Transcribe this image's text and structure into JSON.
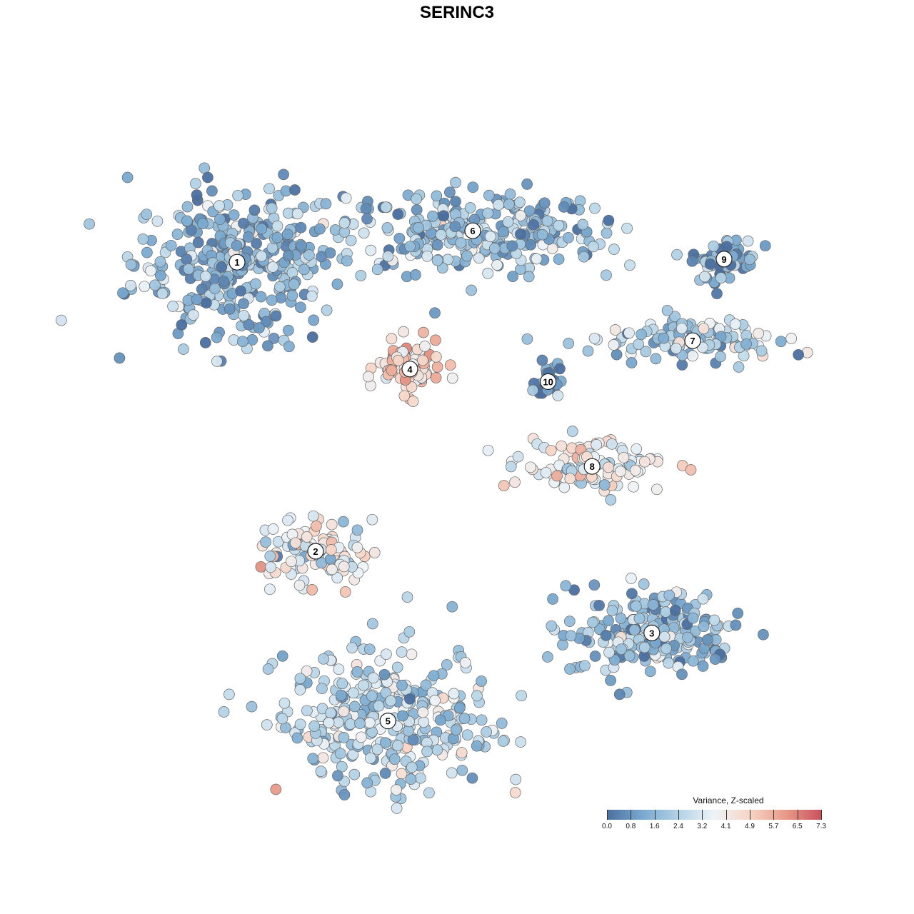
{
  "chart_data": {
    "type": "scatter",
    "title": "SERINC3",
    "xlabel": "",
    "ylabel": "",
    "grid": false,
    "legend": {
      "title": "Variance, Z-scaled",
      "placement": "bottom-right",
      "ticks": [
        "0.0",
        "0.8",
        "1.6",
        "2.4",
        "3.2",
        "4.1",
        "4.9",
        "5.7",
        "6.5",
        "7.3"
      ],
      "range": [
        0.0,
        7.3
      ],
      "colors": [
        "#4a6fa0",
        "#7aa9cf",
        "#b3d2e6",
        "#eef3f7",
        "#f7d5c6",
        "#e89a88",
        "#c9515e"
      ]
    },
    "clusters": [
      {
        "label": "1",
        "x": -0.7,
        "y": 0.62,
        "mean": 1.6
      },
      {
        "label": "6",
        "x": 0.05,
        "y": 0.72,
        "mean": 1.7
      },
      {
        "label": "9",
        "x": 0.85,
        "y": 0.63,
        "mean": 0.9
      },
      {
        "label": "7",
        "x": 0.75,
        "y": 0.37,
        "mean": 2.4
      },
      {
        "label": "4",
        "x": -0.15,
        "y": 0.28,
        "mean": 4.6
      },
      {
        "label": "10",
        "x": 0.29,
        "y": 0.24,
        "mean": 0.6
      },
      {
        "label": "8",
        "x": 0.43,
        "y": -0.03,
        "mean": 3.5
      },
      {
        "label": "2",
        "x": -0.45,
        "y": -0.3,
        "mean": 3.6
      },
      {
        "label": "3",
        "x": 0.62,
        "y": -0.56,
        "mean": 1.8
      },
      {
        "label": "5",
        "x": -0.22,
        "y": -0.84,
        "mean": 2.5
      }
    ]
  }
}
